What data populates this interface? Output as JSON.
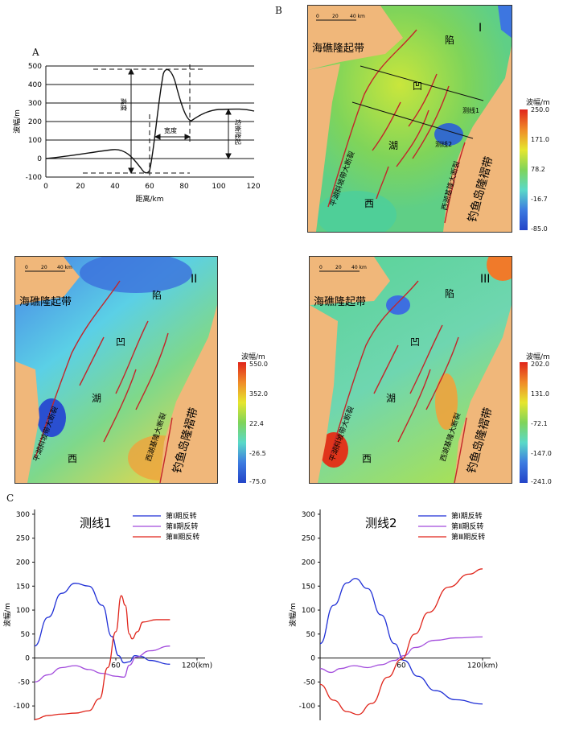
{
  "panel_labels": {
    "a": "A",
    "b": "B",
    "c": "C"
  },
  "panelA": {
    "ylabel": "波幅/m",
    "xlabel": "距离/km",
    "yticks": [
      "500",
      "400",
      "300",
      "200",
      "100",
      "0",
      "-100"
    ],
    "xticks": [
      "0",
      "20",
      "40",
      "60",
      "80",
      "100",
      "120"
    ],
    "annot_height": "高度",
    "annot_width": "宽度",
    "annot_mean": "均衡隆起"
  },
  "maps": [
    {
      "roman": "I",
      "scale": [
        "0",
        "20",
        "40 km"
      ],
      "legend_title": "波幅/m",
      "legend_ticks": [
        "250.0",
        "171.0",
        "78.2",
        "-16.7",
        "-85.0"
      ],
      "line1": "测线1",
      "line2": "测线2"
    },
    {
      "roman": "II",
      "scale": [
        "0",
        "20",
        "40 km"
      ],
      "legend_title": "波幅/m",
      "legend_ticks": [
        "550.0",
        "352.0",
        "22.4",
        "-26.5",
        "-75.0"
      ]
    },
    {
      "roman": "III",
      "scale": [
        "0",
        "20",
        "40 km"
      ],
      "legend_title": "波幅/m",
      "legend_ticks": [
        "202.0",
        "131.0",
        "-72.1",
        "-147.0",
        "-241.0"
      ]
    }
  ],
  "map_text": {
    "haijiao": "海礁隆起带",
    "diaoyu": "钓鱼岛隆褶带",
    "pinghu": "平湖斜坡带大断裂",
    "xihu_fault": "西湖基隆大断裂",
    "xi": "西",
    "hu": "湖",
    "ao": "凹",
    "xian": "陷"
  },
  "chart_data": [
    {
      "type": "line",
      "title": "测线1",
      "xlabel": "",
      "ylabel": "波幅/m",
      "xlim": [
        0,
        120
      ],
      "ylim": [
        -130,
        310
      ],
      "x_tick_labels": [
        "60",
        "120(km)"
      ],
      "yticks": [
        300,
        250,
        200,
        150,
        100,
        50,
        0,
        -50,
        -100
      ],
      "series": [
        {
          "name": "第Ⅰ期反转",
          "color": "#1f2fd6",
          "points": [
            [
              0,
              25
            ],
            [
              10,
              85
            ],
            [
              20,
              135
            ],
            [
              30,
              156
            ],
            [
              40,
              150
            ],
            [
              50,
              110
            ],
            [
              57,
              45
            ],
            [
              62,
              5
            ],
            [
              66,
              -10
            ],
            [
              70,
              -8
            ],
            [
              74,
              5
            ],
            [
              79,
              3
            ],
            [
              85,
              -5
            ],
            [
              100,
              -13
            ]
          ]
        },
        {
          "name": "第Ⅱ期反转",
          "color": "#a24bdc",
          "points": [
            [
              0,
              -50
            ],
            [
              10,
              -35
            ],
            [
              20,
              -20
            ],
            [
              30,
              -16
            ],
            [
              40,
              -24
            ],
            [
              50,
              -32
            ],
            [
              60,
              -38
            ],
            [
              66,
              -40
            ],
            [
              70,
              -15
            ],
            [
              75,
              2
            ],
            [
              85,
              15
            ],
            [
              100,
              25
            ]
          ]
        },
        {
          "name": "第Ⅲ期反转",
          "color": "#e0251b",
          "points": [
            [
              0,
              -128
            ],
            [
              10,
              -120
            ],
            [
              20,
              -117
            ],
            [
              30,
              -115
            ],
            [
              40,
              -110
            ],
            [
              48,
              -85
            ],
            [
              54,
              -20
            ],
            [
              60,
              55
            ],
            [
              64,
              130
            ],
            [
              67,
              110
            ],
            [
              70,
              50
            ],
            [
              72,
              40
            ],
            [
              76,
              55
            ],
            [
              80,
              75
            ],
            [
              90,
              80
            ],
            [
              100,
              80
            ]
          ]
        }
      ]
    },
    {
      "type": "line",
      "title": "测线2",
      "xlabel": "",
      "ylabel": "波幅/m",
      "xlim": [
        0,
        120
      ],
      "ylim": [
        -130,
        310
      ],
      "x_tick_labels": [
        "60",
        "120(km)"
      ],
      "yticks": [
        300,
        250,
        200,
        150,
        100,
        50,
        0,
        -50,
        -100
      ],
      "series": [
        {
          "name": "第Ⅰ期反转",
          "color": "#1f2fd6",
          "points": [
            [
              0,
              30
            ],
            [
              10,
              110
            ],
            [
              20,
              157
            ],
            [
              26,
              166
            ],
            [
              35,
              145
            ],
            [
              45,
              90
            ],
            [
              55,
              30
            ],
            [
              62,
              -5
            ],
            [
              72,
              -38
            ],
            [
              85,
              -68
            ],
            [
              100,
              -87
            ],
            [
              120,
              -96
            ]
          ]
        },
        {
          "name": "第Ⅱ期反转",
          "color": "#a24bdc",
          "points": [
            [
              0,
              -22
            ],
            [
              8,
              -30
            ],
            [
              15,
              -22
            ],
            [
              25,
              -16
            ],
            [
              35,
              -20
            ],
            [
              45,
              -14
            ],
            [
              55,
              -5
            ],
            [
              62,
              5
            ],
            [
              70,
              22
            ],
            [
              85,
              37
            ],
            [
              100,
              42
            ],
            [
              120,
              44
            ]
          ]
        },
        {
          "name": "第Ⅲ期反转",
          "color": "#e0251b",
          "points": [
            [
              0,
              -55
            ],
            [
              10,
              -88
            ],
            [
              20,
              -112
            ],
            [
              28,
              -118
            ],
            [
              38,
              -95
            ],
            [
              50,
              -40
            ],
            [
              60,
              -3
            ],
            [
              70,
              50
            ],
            [
              80,
              95
            ],
            [
              95,
              148
            ],
            [
              110,
              175
            ],
            [
              120,
              186
            ]
          ]
        }
      ]
    }
  ]
}
